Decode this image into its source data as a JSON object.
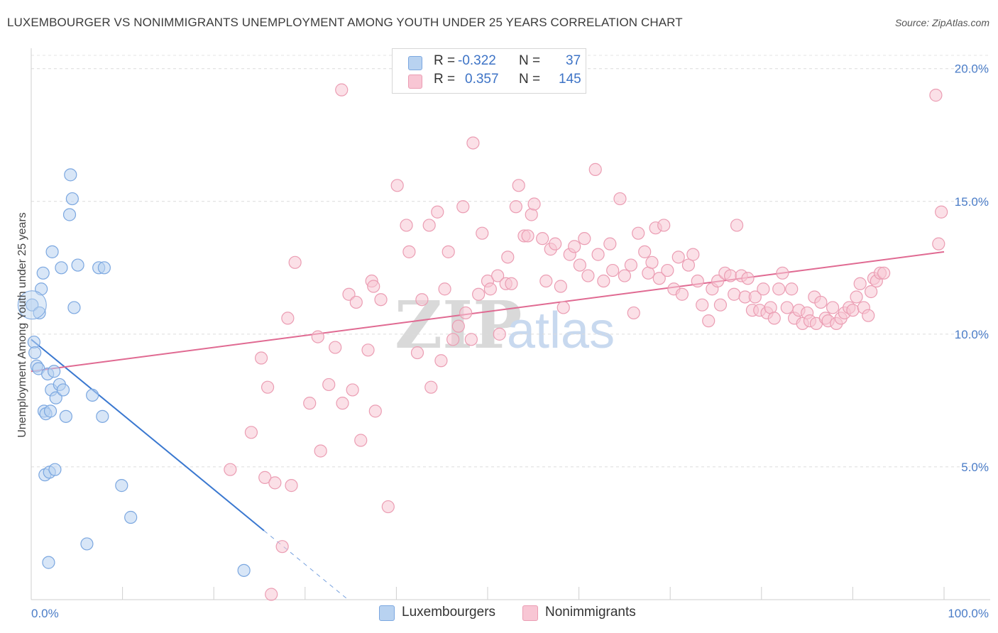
{
  "title": "LUXEMBOURGER VS NONIMMIGRANTS UNEMPLOYMENT AMONG YOUTH UNDER 25 YEARS CORRELATION CHART",
  "source": "Source: ZipAtlas.com",
  "watermark": {
    "zip": "ZIP",
    "atlas": "atlas"
  },
  "colors": {
    "blue_fill": "#b8d2f0",
    "blue_stroke": "#7ba7e0",
    "blue_line": "#3a78d0",
    "pink_fill": "#f8c6d4",
    "pink_stroke": "#eb9db3",
    "pink_line": "#e06a92",
    "tick_text": "#4a7cc7"
  },
  "legend": {
    "rows": [
      {
        "r_label": "R =",
        "r_value": "-0.322",
        "n_label": "N =",
        "n_value": "37"
      },
      {
        "r_label": "R =",
        "r_value": "0.357",
        "n_label": "N =",
        "n_value": "145"
      }
    ]
  },
  "bottom_legend": [
    "Luxembourgers",
    "Nonimmigrants"
  ],
  "chart_data": {
    "type": "scatter",
    "title": "LUXEMBOURGER VS NONIMMIGRANTS UNEMPLOYMENT AMONG YOUTH UNDER 25 YEARS CORRELATION CHART",
    "xlabel": "",
    "ylabel": "Unemployment Among Youth under 25 years",
    "xlim": [
      0,
      100
    ],
    "ylim": [
      0,
      20.5
    ],
    "x_tick_labels": [
      "0.0%",
      "100.0%"
    ],
    "y_ticks": [
      5,
      10,
      15,
      20
    ],
    "y_tick_labels": [
      "5.0%",
      "10.0%",
      "15.0%",
      "20.0%"
    ],
    "grid": true,
    "legend_position": "top-center",
    "series": [
      {
        "name": "Luxembourgers",
        "color": "#b8d2f0",
        "r": -0.322,
        "n": 37,
        "trend": {
          "x0": 0,
          "y0": 9.8,
          "x1": 25.5,
          "y1": 2.6,
          "dash_to_x": 34.5
        },
        "points": [
          [
            0.1,
            11.1
          ],
          [
            0.3,
            9.7
          ],
          [
            0.4,
            9.3
          ],
          [
            0.6,
            8.8
          ],
          [
            0.8,
            8.7
          ],
          [
            0.9,
            10.8
          ],
          [
            1.1,
            11.7
          ],
          [
            1.3,
            12.3
          ],
          [
            1.4,
            7.1
          ],
          [
            1.5,
            4.7
          ],
          [
            1.6,
            7.0
          ],
          [
            1.8,
            8.5
          ],
          [
            1.9,
            1.4
          ],
          [
            2.0,
            4.8
          ],
          [
            2.1,
            7.1
          ],
          [
            2.2,
            7.9
          ],
          [
            2.3,
            13.1
          ],
          [
            2.5,
            8.6
          ],
          [
            2.6,
            4.9
          ],
          [
            2.7,
            7.6
          ],
          [
            3.1,
            8.1
          ],
          [
            3.3,
            12.5
          ],
          [
            3.5,
            7.9
          ],
          [
            3.8,
            6.9
          ],
          [
            4.2,
            14.5
          ],
          [
            4.3,
            16.0
          ],
          [
            4.5,
            15.1
          ],
          [
            4.7,
            11.0
          ],
          [
            5.1,
            12.6
          ],
          [
            6.1,
            2.1
          ],
          [
            6.7,
            7.7
          ],
          [
            7.4,
            12.5
          ],
          [
            7.8,
            6.9
          ],
          [
            8.0,
            12.5
          ],
          [
            9.9,
            4.3
          ],
          [
            10.9,
            3.1
          ],
          [
            23.3,
            1.1
          ]
        ]
      },
      {
        "name": "Nonimmigrants",
        "color": "#f8c6d4",
        "r": 0.357,
        "n": 145,
        "trend": {
          "x0": 0,
          "y0": 8.6,
          "x1": 100,
          "y1": 13.1
        },
        "points": [
          [
            21.8,
            4.9
          ],
          [
            24.1,
            6.3
          ],
          [
            25.2,
            9.1
          ],
          [
            25.6,
            4.6
          ],
          [
            25.9,
            8.0
          ],
          [
            26.7,
            4.4
          ],
          [
            26.3,
            0.2
          ],
          [
            27.5,
            2.0
          ],
          [
            28.9,
            12.7
          ],
          [
            28.5,
            4.3
          ],
          [
            28.1,
            10.6
          ],
          [
            30.5,
            7.4
          ],
          [
            31.4,
            9.9
          ],
          [
            31.7,
            5.6
          ],
          [
            32.6,
            8.1
          ],
          [
            34.1,
            7.4
          ],
          [
            33.3,
            9.5
          ],
          [
            34.8,
            11.5
          ],
          [
            35.2,
            7.9
          ],
          [
            36.1,
            6.0
          ],
          [
            36.9,
            9.4
          ],
          [
            37.3,
            12.0
          ],
          [
            37.5,
            11.8
          ],
          [
            37.7,
            7.1
          ],
          [
            38.3,
            11.3
          ],
          [
            39.1,
            3.5
          ],
          [
            40.1,
            15.6
          ],
          [
            41.1,
            14.1
          ],
          [
            41.4,
            13.1
          ],
          [
            42.3,
            9.3
          ],
          [
            42.8,
            11.3
          ],
          [
            43.8,
            8.0
          ],
          [
            43.6,
            14.1
          ],
          [
            44.5,
            14.6
          ],
          [
            44.9,
            9.0
          ],
          [
            45.3,
            11.7
          ],
          [
            45.7,
            13.1
          ],
          [
            46.2,
            9.8
          ],
          [
            46.8,
            10.3
          ],
          [
            47.3,
            14.8
          ],
          [
            47.6,
            10.8
          ],
          [
            48.2,
            9.8
          ],
          [
            48.4,
            17.2
          ],
          [
            49.0,
            11.5
          ],
          [
            49.4,
            13.8
          ],
          [
            50.0,
            12.0
          ],
          [
            50.3,
            11.7
          ],
          [
            51.1,
            12.2
          ],
          [
            51.3,
            10.0
          ],
          [
            52.0,
            11.9
          ],
          [
            52.2,
            12.9
          ],
          [
            52.6,
            11.9
          ],
          [
            53.1,
            14.8
          ],
          [
            53.4,
            15.6
          ],
          [
            54.0,
            13.7
          ],
          [
            54.4,
            13.7
          ],
          [
            54.8,
            14.5
          ],
          [
            55.1,
            14.9
          ],
          [
            56.0,
            13.6
          ],
          [
            56.4,
            12.0
          ],
          [
            56.9,
            13.2
          ],
          [
            57.4,
            13.4
          ],
          [
            58.0,
            11.8
          ],
          [
            58.3,
            11.0
          ],
          [
            59.0,
            13.0
          ],
          [
            59.5,
            13.3
          ],
          [
            60.1,
            12.6
          ],
          [
            60.6,
            13.6
          ],
          [
            61.0,
            12.2
          ],
          [
            61.8,
            16.2
          ],
          [
            62.1,
            13.0
          ],
          [
            62.7,
            12.0
          ],
          [
            63.4,
            13.4
          ],
          [
            63.7,
            12.4
          ],
          [
            64.5,
            15.1
          ],
          [
            65.0,
            12.2
          ],
          [
            65.7,
            12.6
          ],
          [
            66.0,
            10.8
          ],
          [
            66.5,
            13.8
          ],
          [
            67.2,
            13.1
          ],
          [
            67.6,
            12.3
          ],
          [
            68.0,
            12.7
          ],
          [
            68.4,
            14.0
          ],
          [
            68.8,
            12.1
          ],
          [
            69.3,
            14.1
          ],
          [
            69.7,
            12.4
          ],
          [
            70.4,
            11.7
          ],
          [
            70.9,
            12.9
          ],
          [
            71.3,
            11.5
          ],
          [
            72.0,
            12.6
          ],
          [
            72.5,
            13.0
          ],
          [
            73.0,
            12.0
          ],
          [
            73.5,
            11.1
          ],
          [
            74.2,
            10.5
          ],
          [
            74.6,
            11.7
          ],
          [
            75.2,
            12.0
          ],
          [
            75.5,
            11.1
          ],
          [
            76.0,
            12.3
          ],
          [
            76.6,
            12.2
          ],
          [
            77.0,
            11.5
          ],
          [
            77.3,
            14.1
          ],
          [
            77.8,
            12.2
          ],
          [
            78.2,
            11.4
          ],
          [
            78.5,
            12.1
          ],
          [
            79.0,
            10.9
          ],
          [
            79.3,
            11.4
          ],
          [
            79.8,
            10.9
          ],
          [
            80.2,
            11.7
          ],
          [
            80.6,
            10.8
          ],
          [
            81.0,
            11.0
          ],
          [
            81.4,
            10.6
          ],
          [
            81.9,
            11.7
          ],
          [
            82.3,
            12.3
          ],
          [
            82.8,
            11.0
          ],
          [
            83.3,
            11.7
          ],
          [
            83.6,
            10.6
          ],
          [
            84.1,
            10.9
          ],
          [
            84.5,
            10.4
          ],
          [
            85.0,
            10.8
          ],
          [
            85.3,
            10.5
          ],
          [
            85.8,
            11.4
          ],
          [
            86.0,
            10.4
          ],
          [
            86.5,
            11.2
          ],
          [
            87.0,
            10.6
          ],
          [
            87.3,
            10.5
          ],
          [
            87.8,
            11.0
          ],
          [
            88.2,
            10.4
          ],
          [
            88.7,
            10.6
          ],
          [
            89.1,
            10.8
          ],
          [
            89.6,
            11.0
          ],
          [
            90.0,
            10.9
          ],
          [
            90.4,
            11.4
          ],
          [
            90.8,
            11.9
          ],
          [
            91.2,
            11.0
          ],
          [
            91.7,
            10.7
          ],
          [
            92.0,
            11.6
          ],
          [
            92.3,
            12.1
          ],
          [
            92.6,
            12.0
          ],
          [
            93.0,
            12.3
          ],
          [
            93.4,
            12.3
          ],
          [
            99.1,
            19.0
          ],
          [
            99.4,
            13.4
          ],
          [
            99.7,
            14.6
          ],
          [
            34.0,
            19.2
          ],
          [
            35.6,
            11.2
          ]
        ]
      }
    ]
  }
}
